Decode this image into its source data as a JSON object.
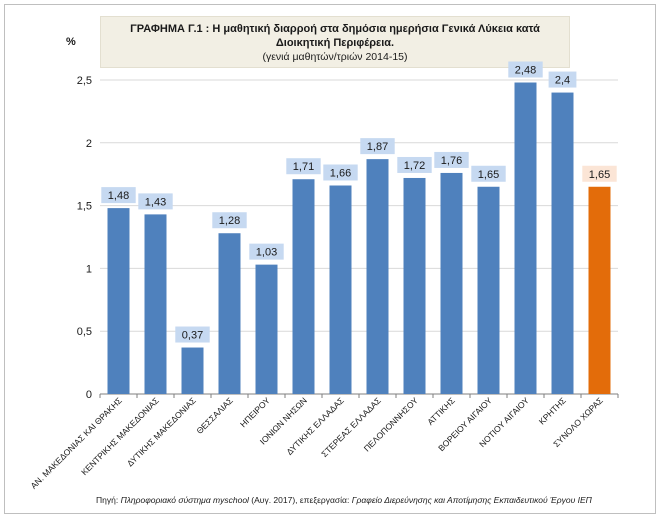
{
  "chart_data": {
    "type": "bar",
    "title": "ΓΡΑΦΗΜΑ Γ.1 : Η μαθητική διαρροή στα δημόσια ημερήσια Γενικά Λύκεια κατά Διοικητική Περιφέρεια.",
    "subtitle": "(γενιά μαθητών/τριών 2014-15)",
    "ylabel": "%",
    "xlabel": "",
    "ylim": [
      0,
      2.5
    ],
    "yticks": [
      "0",
      "0,5",
      "1",
      "1,5",
      "2",
      "2,5"
    ],
    "ytick_values": [
      0,
      0.5,
      1,
      1.5,
      2,
      2.5
    ],
    "grid": true,
    "categories": [
      "ΑΝ. ΜΑΚΕΔΟΝΙΑΣ ΚΑΙ ΘΡΑΚΗΣ",
      "ΚΕΝΤΡΙΚΗΣ ΜΑΚΕΔΟΝΙΑΣ",
      "ΔΥΤΙΚΗΣ ΜΑΚΕΔΟΝΙΑΣ",
      "ΘΕΣΣΑΛΙΑΣ",
      "ΗΠΕΙΡΟΥ",
      "ΙΟΝΙΩΝ ΝΗΣΩΝ",
      "ΔΥΤΙΚΗΣ ΕΛΛΑΔΑΣ",
      "ΣΤΕΡΕΑΣ ΕΛΛΑΔΑΣ",
      "ΠΕΛΟΠΟΝΝΗΣΟΥ",
      "ΑΤΤΙΚΗΣ",
      "ΒΟΡΕΙΟΥ ΑΙΓΑΙΟΥ",
      "ΝΟΤΙΟΥ ΑΙΓΑΙΟΥ",
      "ΚΡΗΤΗΣ",
      "ΣΥΝΟΛΟ ΧΩΡΑΣ"
    ],
    "values": [
      1.48,
      1.43,
      0.37,
      1.28,
      1.03,
      1.71,
      1.66,
      1.87,
      1.72,
      1.76,
      1.65,
      2.48,
      2.4,
      1.65
    ],
    "value_labels": [
      "1,48",
      "1,43",
      "0,37",
      "1,28",
      "1,03",
      "1,71",
      "1,66",
      "1,87",
      "1,72",
      "1,76",
      "1,65",
      "2,48",
      "2,4",
      "1,65"
    ],
    "colors": [
      "#4f81bd",
      "#4f81bd",
      "#4f81bd",
      "#4f81bd",
      "#4f81bd",
      "#4f81bd",
      "#4f81bd",
      "#4f81bd",
      "#4f81bd",
      "#4f81bd",
      "#4f81bd",
      "#4f81bd",
      "#4f81bd",
      "#e36c0a"
    ],
    "label_bg_colors": [
      "#c6d9f1",
      "#c6d9f1",
      "#c6d9f1",
      "#c6d9f1",
      "#c6d9f1",
      "#c6d9f1",
      "#c6d9f1",
      "#c6d9f1",
      "#c6d9f1",
      "#c6d9f1",
      "#c6d9f1",
      "#c6d9f1",
      "#c6d9f1",
      "#fbe5d6"
    ]
  },
  "source": {
    "prefix": "Πηγή: ",
    "system": "Πληροφοριακό σύστημα myschool",
    "date": " (Αυγ. 2017), επεξεργασία: ",
    "office": "Γραφείο Διερεύνησης και Αποτίμησης Εκπαιδευτικού Έργου ΙΕΠ"
  }
}
